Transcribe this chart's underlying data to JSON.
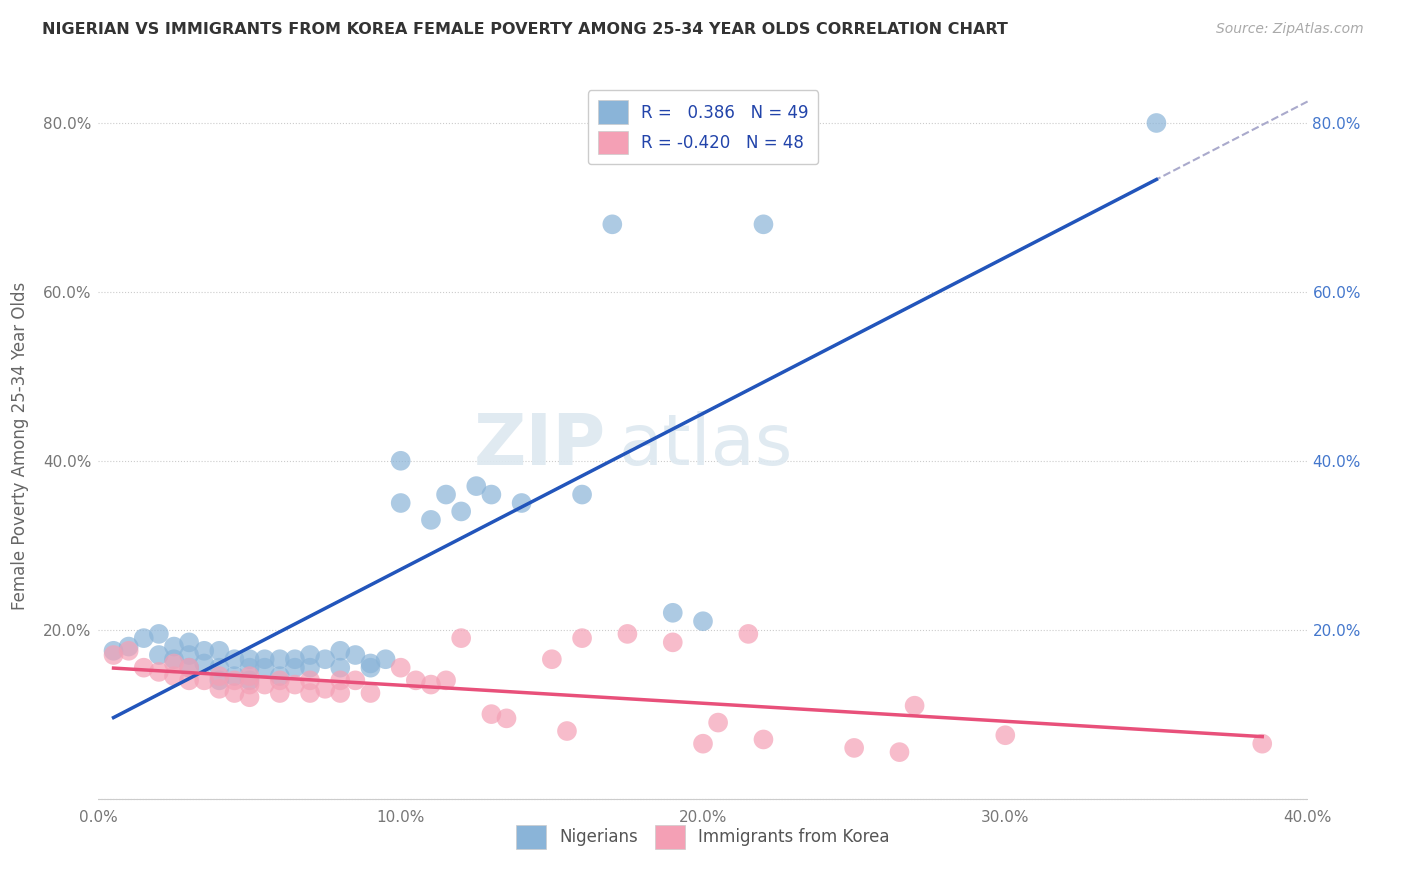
{
  "title": "NIGERIAN VS IMMIGRANTS FROM KOREA FEMALE POVERTY AMONG 25-34 YEAR OLDS CORRELATION CHART",
  "source": "Source: ZipAtlas.com",
  "ylabel": "Female Poverty Among 25-34 Year Olds",
  "r_blue": 0.386,
  "n_blue": 49,
  "r_pink": -0.42,
  "n_pink": 48,
  "xlim": [
    0.0,
    0.4
  ],
  "ylim": [
    -0.005,
    0.84
  ],
  "xticks": [
    0.0,
    0.05,
    0.1,
    0.15,
    0.2,
    0.25,
    0.3,
    0.35,
    0.4
  ],
  "xtick_labels": [
    "0.0%",
    "",
    "10.0%",
    "",
    "20.0%",
    "",
    "30.0%",
    "",
    "40.0%"
  ],
  "yticks": [
    0.0,
    0.2,
    0.4,
    0.6,
    0.8
  ],
  "ytick_labels_left": [
    "",
    "20.0%",
    "40.0%",
    "60.0%",
    "80.0%"
  ],
  "ytick_labels_right": [
    "",
    "20.0%",
    "40.0%",
    "60.0%",
    "80.0%"
  ],
  "blue_color": "#8ab4d8",
  "pink_color": "#f4a0b5",
  "blue_line_color": "#2255bb",
  "pink_line_color": "#e8507a",
  "gray_dash_color": "#aaaacc",
  "background_color": "#ffffff",
  "watermark_zip": "ZIP",
  "watermark_atlas": "atlas",
  "blue_scatter_x": [
    0.005,
    0.01,
    0.015,
    0.02,
    0.02,
    0.025,
    0.025,
    0.03,
    0.03,
    0.03,
    0.035,
    0.035,
    0.04,
    0.04,
    0.04,
    0.045,
    0.045,
    0.05,
    0.05,
    0.05,
    0.055,
    0.055,
    0.06,
    0.06,
    0.065,
    0.065,
    0.07,
    0.07,
    0.075,
    0.08,
    0.08,
    0.085,
    0.09,
    0.09,
    0.095,
    0.1,
    0.1,
    0.11,
    0.115,
    0.12,
    0.125,
    0.13,
    0.14,
    0.16,
    0.17,
    0.19,
    0.2,
    0.22,
    0.35
  ],
  "blue_scatter_y": [
    0.175,
    0.18,
    0.19,
    0.17,
    0.195,
    0.165,
    0.18,
    0.155,
    0.17,
    0.185,
    0.16,
    0.175,
    0.14,
    0.155,
    0.175,
    0.145,
    0.165,
    0.14,
    0.155,
    0.165,
    0.155,
    0.165,
    0.145,
    0.165,
    0.155,
    0.165,
    0.155,
    0.17,
    0.165,
    0.155,
    0.175,
    0.17,
    0.155,
    0.16,
    0.165,
    0.35,
    0.4,
    0.33,
    0.36,
    0.34,
    0.37,
    0.36,
    0.35,
    0.36,
    0.68,
    0.22,
    0.21,
    0.68,
    0.8
  ],
  "pink_scatter_x": [
    0.005,
    0.01,
    0.015,
    0.02,
    0.025,
    0.025,
    0.03,
    0.03,
    0.035,
    0.04,
    0.04,
    0.045,
    0.045,
    0.05,
    0.05,
    0.05,
    0.055,
    0.06,
    0.06,
    0.065,
    0.07,
    0.07,
    0.075,
    0.08,
    0.08,
    0.085,
    0.09,
    0.1,
    0.105,
    0.11,
    0.115,
    0.12,
    0.13,
    0.135,
    0.15,
    0.155,
    0.16,
    0.175,
    0.19,
    0.2,
    0.205,
    0.215,
    0.22,
    0.25,
    0.265,
    0.27,
    0.3,
    0.385
  ],
  "pink_scatter_y": [
    0.17,
    0.175,
    0.155,
    0.15,
    0.145,
    0.16,
    0.14,
    0.155,
    0.14,
    0.13,
    0.145,
    0.125,
    0.14,
    0.12,
    0.135,
    0.145,
    0.135,
    0.125,
    0.14,
    0.135,
    0.125,
    0.14,
    0.13,
    0.125,
    0.14,
    0.14,
    0.125,
    0.155,
    0.14,
    0.135,
    0.14,
    0.19,
    0.1,
    0.095,
    0.165,
    0.08,
    0.19,
    0.195,
    0.185,
    0.065,
    0.09,
    0.195,
    0.07,
    0.06,
    0.055,
    0.11,
    0.075,
    0.065
  ]
}
